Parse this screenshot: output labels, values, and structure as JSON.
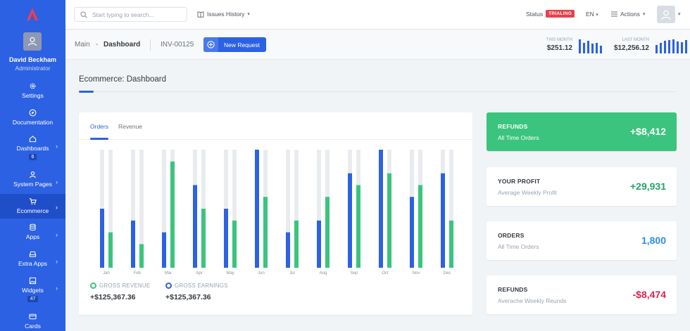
{
  "user": {
    "name": "David Beckham",
    "role": "Administrator"
  },
  "sidebar": {
    "items": [
      {
        "label": "Settings"
      },
      {
        "label": "Documentation"
      },
      {
        "label": "Dashboards",
        "badge": "6"
      },
      {
        "label": "System Pages"
      },
      {
        "label": "Ecommerce"
      },
      {
        "label": "Apps"
      },
      {
        "label": "Extra Apps"
      },
      {
        "label": "Widgets",
        "badge": "47"
      },
      {
        "label": "Cards"
      }
    ]
  },
  "topbar": {
    "search_placeholder": "Start typing to search...",
    "issues_label": "Issues History",
    "status_label": "Status",
    "status_badge": "TRIALING",
    "language": "EN",
    "actions_label": "Actions"
  },
  "subheader": {
    "crumb_main": "Main",
    "crumb_sep": "-",
    "crumb_current": "Dashboard",
    "invoice": "INV-00125",
    "new_request": "New Request",
    "this_month_label": "THIS MONTH",
    "this_month_value": "$251.12",
    "last_month_label": "LAST MONTH",
    "last_month_value": "$12,256.12"
  },
  "page": {
    "title": "Ecommerce: Dashboard"
  },
  "chart_tabs": {
    "orders": "Orders",
    "revenue": "Revenue"
  },
  "chart_data": {
    "type": "bar",
    "categories": [
      "Jan",
      "Feb",
      "Mar",
      "Apr",
      "May",
      "Jun",
      "Jul",
      "Aug",
      "Sep",
      "Oct",
      "Nov",
      "Dec"
    ],
    "ylim": [
      0,
      100
    ],
    "series": [
      {
        "name": "GROSS EARNINGS",
        "color": "#2c61e3",
        "values": [
          50,
          40,
          30,
          70,
          50,
          100,
          30,
          40,
          80,
          100,
          60,
          80
        ]
      },
      {
        "name": "GROSS REVENUE",
        "color": "#3ac47d",
        "values": [
          30,
          20,
          90,
          50,
          40,
          60,
          40,
          60,
          70,
          80,
          70,
          40
        ]
      }
    ],
    "track_color": "#e9ecef"
  },
  "legend": {
    "revenue_label": "GROSS REVENUE",
    "revenue_value": "+$125,367.36",
    "earnings_label": "GROSS EARNINGS",
    "earnings_value": "+$125,367.36"
  },
  "cards": [
    {
      "title": "REFUNDS",
      "subtitle": "All Time Orders",
      "value": "+$8,412",
      "color": "#ffffff"
    },
    {
      "title": "YOUR PROFIT",
      "subtitle": "Average Weekly Profit",
      "value": "+29,931",
      "color": "#2ba36a"
    },
    {
      "title": "ORDERS",
      "subtitle": "All Time Orders",
      "value": "1,800",
      "color": "#2c8fde"
    },
    {
      "title": "REFUNDS",
      "subtitle": "Averache Weekly Reunds",
      "value": "-$8,474",
      "color": "#d92550"
    }
  ],
  "mini_bars": {
    "this_month": [
      1,
      0.75,
      0.9,
      0.7,
      0.75,
      0.55
    ],
    "last_month": [
      0.6,
      0.75,
      0.9,
      0.95,
      1,
      0.85,
      0.8,
      0.95
    ]
  }
}
